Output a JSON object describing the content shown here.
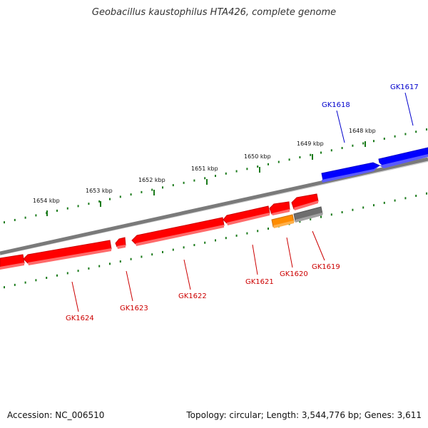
{
  "title": "Geobacillus kaustophilus HTA426, complete genome",
  "footer": {
    "accession": "Accession: NC_006510",
    "info": "Topology: circular; Length: 3,544,776 bp; Genes: 3,611"
  },
  "colors": {
    "backbone": "#7a7a7a",
    "tick": "#1a7a1a",
    "forward_gene": "#0000ff",
    "reverse_gene": "#ff0000",
    "reverse_gene_alt": "#ff8c00",
    "gray_gene": "#6e6e6e",
    "forward_label": "#0000cc",
    "reverse_label": "#cc0000"
  },
  "ticks": {
    "labels": [
      "1654 kbp",
      "1653 kbp",
      "1652 kbp",
      "1651 kbp",
      "1650 kbp",
      "1649 kbp",
      "1648 kbp"
    ]
  },
  "genes": [
    {
      "id": "GK1617",
      "strand": "forward"
    },
    {
      "id": "GK1618",
      "strand": "forward"
    },
    {
      "id": "GK1619",
      "strand": "reverse"
    },
    {
      "id": "GK1620",
      "strand": "reverse"
    },
    {
      "id": "GK1621",
      "strand": "reverse"
    },
    {
      "id": "GK1622",
      "strand": "reverse"
    },
    {
      "id": "GK1623",
      "strand": "reverse"
    },
    {
      "id": "GK1624",
      "strand": "reverse"
    }
  ]
}
